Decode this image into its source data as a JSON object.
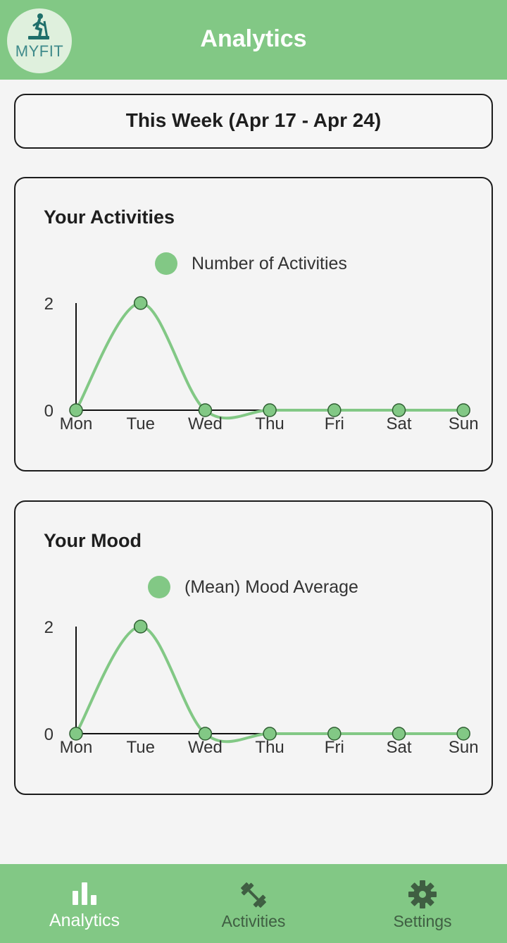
{
  "header": {
    "title": "Analytics",
    "logo_text": "MYFIT",
    "logo_icon": "treadmill-runner-icon"
  },
  "week": {
    "label": "This Week (Apr 17 - Apr 24)"
  },
  "cards": {
    "activities": {
      "title": "Your Activities",
      "legend": "Number of Activities"
    },
    "mood": {
      "title": "Your Mood",
      "legend": "(Mean) Mood Average"
    }
  },
  "chart_data": [
    {
      "type": "line",
      "title": "Your Activities",
      "categories": [
        "Mon",
        "Tue",
        "Wed",
        "Thu",
        "Fri",
        "Sat",
        "Sun"
      ],
      "series": [
        {
          "name": "Number of Activities",
          "values": [
            0,
            2,
            0,
            0,
            0,
            0,
            0
          ]
        }
      ],
      "yticks": [
        "0",
        "2"
      ],
      "ylim": [
        0,
        2
      ],
      "grid": false,
      "legend_position": "top",
      "color": "#82c885"
    },
    {
      "type": "line",
      "title": "Your Mood",
      "categories": [
        "Mon",
        "Tue",
        "Wed",
        "Thu",
        "Fri",
        "Sat",
        "Sun"
      ],
      "series": [
        {
          "name": "(Mean) Mood Average",
          "values": [
            0,
            2,
            0,
            0,
            0,
            0,
            0
          ]
        }
      ],
      "yticks": [
        "0",
        "2"
      ],
      "ylim": [
        0,
        2
      ],
      "grid": false,
      "legend_position": "top",
      "color": "#82c885"
    }
  ],
  "nav": {
    "items": [
      {
        "label": "Analytics",
        "icon": "bar-chart-icon",
        "active": true
      },
      {
        "label": "Activities",
        "icon": "dumbbell-icon",
        "active": false
      },
      {
        "label": "Settings",
        "icon": "gear-icon",
        "active": false
      }
    ]
  },
  "colors": {
    "primary": "#82c885",
    "background": "#f4f4f4",
    "nav_active_text": "#ffffff",
    "nav_inactive": "#3f5e42"
  }
}
